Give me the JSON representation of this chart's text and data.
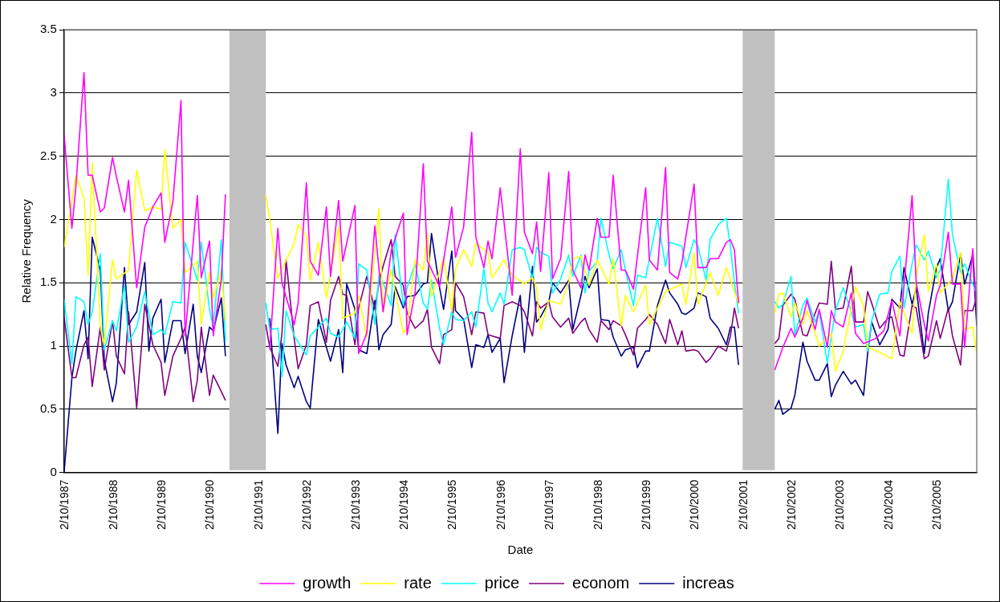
{
  "chart_data": {
    "type": "line",
    "xlabel": "Date",
    "ylabel": "Relative Frequency",
    "xlim": [
      "1987-02-01",
      "2005-12-01"
    ],
    "xticks": [
      {
        "value": "1987-02-10",
        "label": "2/10/1987"
      },
      {
        "value": "1988-02-10",
        "label": "2/10/1988"
      },
      {
        "value": "1989-02-10",
        "label": "2/10/1989"
      },
      {
        "value": "1990-02-10",
        "label": "2/10/1990"
      },
      {
        "value": "1991-02-10",
        "label": "2/10/1991"
      },
      {
        "value": "1992-02-10",
        "label": "2/10/1992"
      },
      {
        "value": "1993-02-10",
        "label": "2/10/1993"
      },
      {
        "value": "1994-02-10",
        "label": "2/10/1994"
      },
      {
        "value": "1995-02-10",
        "label": "2/10/1995"
      },
      {
        "value": "1996-02-10",
        "label": "2/10/1996"
      },
      {
        "value": "1997-02-10",
        "label": "2/10/1997"
      },
      {
        "value": "1998-02-10",
        "label": "2/10/1998"
      },
      {
        "value": "1999-02-10",
        "label": "2/10/1999"
      },
      {
        "value": "2000-02-10",
        "label": "2/10/2000"
      },
      {
        "value": "2001-02-10",
        "label": "2/10/2001"
      },
      {
        "value": "2002-02-10",
        "label": "2/10/2002"
      },
      {
        "value": "2003-02-10",
        "label": "2/10/2003"
      },
      {
        "value": "2004-02-10",
        "label": "2/10/2004"
      },
      {
        "value": "2005-02-10",
        "label": "2/10/2005"
      }
    ],
    "ylim": [
      0,
      3.5
    ],
    "yticks": [
      0,
      0.5,
      1,
      1.5,
      2,
      2.5,
      3,
      3.5
    ],
    "grid": "y",
    "legend": "bottom",
    "marker": "none",
    "bands": [
      {
        "axis": "x",
        "from": "1990-07-01",
        "to": "1991-04-01",
        "color": "#c0c0c0"
      },
      {
        "axis": "x",
        "from": "2001-02-01",
        "to": "2001-10-01",
        "color": "#c0c0c0"
      }
    ],
    "series": [
      {
        "name": "growth",
        "color": "#ff00ff",
        "x": [
          "1987-02",
          "1987-04",
          "1987-05",
          "1987-07",
          "1987-08",
          "1987-09",
          "1987-11",
          "1987-12",
          "1988-02",
          "1988-03",
          "1988-05",
          "1988-06",
          "1988-08",
          "1988-10",
          "1988-12",
          "1989-02",
          "1989-03",
          "1989-05",
          "1989-07",
          "1989-08",
          "1989-11",
          "1989-12",
          "1990-02",
          "1990-03",
          "1990-05",
          "1990-06",
          "1990-10",
          "1991-05",
          "1991-07",
          "1991-08",
          "1991-11",
          "1991-12",
          "1992-02",
          "1992-03",
          "1992-05",
          "1992-07",
          "1992-08",
          "1992-10",
          "1992-11",
          "1993-02",
          "1993-03",
          "1993-05",
          "1993-07",
          "1993-09",
          "1993-11",
          "1994-02",
          "1994-03",
          "1994-05",
          "1994-07",
          "1994-08",
          "1994-11",
          "1995-02",
          "1995-03",
          "1995-05",
          "1995-07",
          "1995-08",
          "1995-10",
          "1995-11",
          "1995-12",
          "1996-02",
          "1996-05",
          "1996-07",
          "1996-08",
          "1996-10",
          "1996-11",
          "1996-12",
          "1997-02",
          "1997-03",
          "1997-05",
          "1997-07",
          "1997-08",
          "1997-10",
          "1997-11",
          "1997-12",
          "1998-02",
          "1998-03",
          "1998-05",
          "1998-06",
          "1998-08",
          "1998-09",
          "1998-11",
          "1999-02",
          "1999-03",
          "1999-05",
          "1999-07",
          "1999-08",
          "1999-10",
          "1999-11",
          "2000-02",
          "2000-03",
          "2000-05",
          "2000-06",
          "2000-08",
          "2000-10",
          "2000-11",
          "2000-12",
          "2001-01",
          "2001-06",
          "2001-10",
          "2001-12",
          "2002-02",
          "2002-03",
          "2002-05",
          "2002-06",
          "2002-08",
          "2002-09",
          "2002-11",
          "2002-12",
          "2003-01",
          "2003-03",
          "2003-05",
          "2003-06",
          "2003-08",
          "2003-11",
          "2004-01",
          "2004-03",
          "2004-05",
          "2004-06",
          "2004-08",
          "2004-09",
          "2004-11",
          "2004-12",
          "2005-02",
          "2005-03",
          "2005-05",
          "2005-06",
          "2005-08",
          "2005-09",
          "2005-11",
          "2005-12"
        ],
        "values": [
          2.67,
          1.93,
          2.26,
          3.16,
          2.35,
          2.35,
          2.06,
          2.09,
          2.49,
          2.34,
          2.06,
          2.31,
          1.46,
          1.94,
          2.1,
          2.21,
          1.82,
          2.14,
          2.94,
          1.08,
          2.19,
          1.54,
          1.83,
          1.08,
          1.53,
          2.2,
          null,
          0.97,
          1.93,
          1.5,
          1.17,
          1.34,
          2.29,
          1.67,
          1.56,
          2.1,
          1.55,
          2.15,
          1.67,
          2.11,
          0.94,
          1.1,
          1.95,
          1.27,
          1.75,
          2.05,
          1.09,
          1.43,
          2.44,
          1.67,
          1.47,
          2.1,
          1.7,
          1.94,
          2.69,
          1.86,
          1.62,
          1.83,
          1.69,
          2.25,
          1.4,
          2.56,
          1.9,
          1.73,
          1.98,
          1.59,
          2.37,
          1.53,
          1.69,
          2.38,
          1.6,
          1.46,
          1.72,
          1.6,
          2.01,
          1.86,
          1.86,
          2.35,
          1.6,
          1.6,
          1.45,
          2.25,
          1.68,
          1.6,
          2.41,
          1.58,
          1.53,
          1.66,
          2.28,
          1.62,
          1.62,
          1.69,
          1.69,
          1.82,
          1.84,
          1.76,
          1.34,
          null,
          0.81,
          0.99,
          1.14,
          1.07,
          1.22,
          1.36,
          1.13,
          1.29,
          0.99,
          1.28,
          1.19,
          1.15,
          1.42,
          1.1,
          1.02,
          1.06,
          1.12,
          1.36,
          1.08,
          1.48,
          2.19,
          1.5,
          1.17,
          1.04,
          1.4,
          1.48,
          1.9,
          1.49,
          1.49,
          0.99,
          1.77,
          1.29
        ]
      },
      {
        "name": "rate",
        "color": "#ffff00",
        "x": [
          "1987-02",
          "1987-04",
          "1987-05",
          "1987-07",
          "1987-08",
          "1987-09",
          "1987-11",
          "1987-12",
          "1988-02",
          "1988-03",
          "1988-06",
          "1988-08",
          "1988-10",
          "1988-12",
          "1989-02",
          "1989-03",
          "1989-05",
          "1989-07",
          "1989-08",
          "1989-11",
          "1989-12",
          "1990-02",
          "1990-03",
          "1990-05",
          "1990-06",
          "1990-10",
          "1991-04",
          "1991-05",
          "1991-07",
          "1991-08",
          "1991-10",
          "1991-11",
          "1991-12",
          "1992-02",
          "1992-03",
          "1992-05",
          "1992-07",
          "1992-10",
          "1992-11",
          "1993-02",
          "1993-03",
          "1993-05",
          "1993-08",
          "1993-09",
          "1993-11",
          "1994-02",
          "1994-03",
          "1994-05",
          "1994-07",
          "1994-08",
          "1994-09",
          "1994-12",
          "1995-02",
          "1995-03",
          "1995-05",
          "1995-07",
          "1995-08",
          "1995-11",
          "1995-12",
          "1996-03",
          "1996-05",
          "1996-08",
          "1996-10",
          "1996-11",
          "1996-12",
          "1997-02",
          "1997-05",
          "1997-07",
          "1997-08",
          "1997-10",
          "1997-12",
          "1998-02",
          "1998-05",
          "1998-06",
          "1998-08",
          "1998-09",
          "1998-11",
          "1999-02",
          "1999-03",
          "1999-07",
          "1999-11",
          "1999-12",
          "2000-02",
          "2000-03",
          "2000-06",
          "2000-08",
          "2000-10",
          "2001-01",
          "2001-06",
          "2001-10",
          "2001-11",
          "2001-12",
          "2002-02",
          "2002-03",
          "2002-05",
          "2002-06",
          "2002-08",
          "2002-09",
          "2002-12",
          "2003-01",
          "2003-03",
          "2003-06",
          "2003-08",
          "2003-09",
          "2003-12",
          "2004-03",
          "2004-05",
          "2004-08",
          "2004-09",
          "2004-11",
          "2004-12",
          "2005-02",
          "2005-03",
          "2005-06",
          "2005-08",
          "2005-09",
          "2005-11",
          "2005-12"
        ],
        "values": [
          1.78,
          2.14,
          2.35,
          2.17,
          1.56,
          2.45,
          1.15,
          1.01,
          1.68,
          1.53,
          1.6,
          2.39,
          2.07,
          2.1,
          2.08,
          2.55,
          1.93,
          2.0,
          1.58,
          1.67,
          1.17,
          1.58,
          1.38,
          1.59,
          1.2,
          null,
          2.19,
          2.0,
          1.53,
          1.61,
          1.74,
          1.81,
          1.96,
          1.87,
          1.52,
          1.82,
          1.38,
          1.94,
          1.22,
          1.26,
          1.4,
          1.07,
          2.09,
          1.27,
          1.6,
          1.1,
          1.15,
          1.68,
          1.6,
          1.89,
          1.39,
          1.69,
          1.28,
          1.61,
          1.76,
          1.63,
          1.81,
          1.74,
          1.54,
          1.68,
          1.56,
          1.49,
          1.54,
          1.46,
          1.13,
          1.36,
          1.33,
          1.5,
          1.69,
          1.71,
          1.48,
          1.68,
          1.49,
          1.69,
          1.16,
          1.4,
          1.27,
          1.48,
          1.17,
          1.43,
          1.49,
          1.33,
          1.74,
          1.33,
          1.58,
          1.4,
          1.62,
          1.33,
          null,
          1.26,
          1.41,
          1.42,
          1.23,
          1.34,
          1.17,
          1.28,
          1.1,
          1.0,
          1.1,
          0.8,
          0.96,
          1.47,
          1.32,
          0.99,
          0.95,
          0.9,
          1.35,
          1.1,
          1.55,
          1.88,
          1.43,
          1.65,
          1.42,
          1.53,
          1.74,
          1.13,
          1.15,
          0.94
        ]
      },
      {
        "name": "price",
        "color": "#00ffff",
        "x": [
          "1987-02",
          "1987-04",
          "1987-05",
          "1987-07",
          "1987-08",
          "1987-09",
          "1987-11",
          "1987-12",
          "1988-02",
          "1988-03",
          "1988-05",
          "1988-06",
          "1988-08",
          "1988-10",
          "1988-12",
          "1989-02",
          "1989-03",
          "1989-05",
          "1989-07",
          "1989-08",
          "1989-11",
          "1989-12",
          "1990-02",
          "1990-03",
          "1990-05",
          "1990-06",
          "1990-10",
          "1991-04",
          "1991-05",
          "1991-07",
          "1991-08",
          "1991-09",
          "1991-11",
          "1992-02",
          "1992-03",
          "1992-07",
          "1992-08",
          "1992-10",
          "1992-12",
          "1993-02",
          "1993-03",
          "1993-05",
          "1993-07",
          "1993-08",
          "1993-09",
          "1993-11",
          "1993-12",
          "1994-02",
          "1994-03",
          "1994-05",
          "1994-07",
          "1994-08",
          "1994-09",
          "1994-11",
          "1994-12",
          "1995-02",
          "1995-03",
          "1995-05",
          "1995-07",
          "1995-08",
          "1995-10",
          "1995-11",
          "1995-12",
          "1996-02",
          "1996-03",
          "1996-05",
          "1996-07",
          "1996-08",
          "1996-10",
          "1996-11",
          "1996-12",
          "1997-02",
          "1997-03",
          "1997-05",
          "1997-07",
          "1997-08",
          "1997-10",
          "1997-11",
          "1997-12",
          "1998-02",
          "1998-03",
          "1998-05",
          "1998-06",
          "1998-08",
          "1998-09",
          "1998-11",
          "1998-12",
          "1999-02",
          "1999-03",
          "1999-05",
          "1999-07",
          "1999-08",
          "1999-10",
          "1999-11",
          "1999-12",
          "2000-02",
          "2000-03",
          "2000-05",
          "2000-06",
          "2000-08",
          "2000-10",
          "2000-11",
          "2000-12",
          "2001-01",
          "2001-06",
          "2001-10",
          "2001-11",
          "2001-12",
          "2002-02",
          "2002-03",
          "2002-05",
          "2002-06",
          "2002-08",
          "2002-09",
          "2002-11",
          "2002-12",
          "2003-01",
          "2003-03",
          "2003-05",
          "2003-06",
          "2003-08",
          "2003-09",
          "2003-10",
          "2003-12",
          "2004-02",
          "2004-03",
          "2004-05",
          "2004-06",
          "2004-08",
          "2004-09",
          "2004-11",
          "2004-12",
          "2005-02",
          "2005-03",
          "2005-05",
          "2005-06",
          "2005-08",
          "2005-09",
          "2005-11",
          "2005-12"
        ],
        "values": [
          1.37,
          0.86,
          1.39,
          1.35,
          1.17,
          1.27,
          1.73,
          0.97,
          1.2,
          1.12,
          1.48,
          1.03,
          1.15,
          1.43,
          1.09,
          1.13,
          1.09,
          1.35,
          1.34,
          1.82,
          1.52,
          1.82,
          1.29,
          1.15,
          1.84,
          1.03,
          null,
          1.34,
          1.13,
          1.14,
          0.76,
          1.28,
          1.08,
          0.93,
          1.08,
          1.22,
          1.1,
          1.07,
          1.19,
          1.06,
          1.65,
          1.6,
          1.17,
          1.56,
          1.5,
          1.32,
          1.88,
          1.32,
          1.46,
          1.65,
          1.34,
          1.29,
          1.52,
          1.14,
          1.01,
          1.27,
          1.21,
          1.2,
          1.27,
          1.15,
          1.61,
          1.34,
          1.27,
          1.42,
          1.33,
          1.76,
          1.78,
          1.76,
          1.53,
          1.78,
          1.74,
          1.71,
          1.42,
          1.53,
          1.72,
          1.55,
          1.72,
          1.42,
          1.59,
          1.67,
          2.01,
          1.72,
          1.61,
          1.76,
          1.6,
          1.32,
          1.56,
          1.54,
          1.69,
          2.01,
          1.63,
          1.82,
          1.8,
          1.79,
          1.62,
          1.84,
          1.79,
          1.52,
          1.84,
          1.96,
          2.01,
          1.78,
          1.5,
          1.26,
          null,
          1.35,
          1.3,
          1.33,
          1.55,
          1.09,
          1.32,
          1.38,
          1.19,
          1.27,
          0.87,
          1.08,
          1.28,
          1.46,
          1.27,
          1.15,
          1.17,
          0.96,
          1.2,
          1.41,
          1.42,
          1.59,
          1.71,
          1.3,
          1.65,
          1.8,
          1.68,
          1.75,
          1.54,
          1.6,
          2.32,
          1.88,
          1.58,
          1.65,
          1.49,
          1.41
        ]
      },
      {
        "name": "econom",
        "color": "#800080",
        "x": [
          "1987-02",
          "1987-04",
          "1987-05",
          "1987-07",
          "1987-08",
          "1987-09",
          "1987-11",
          "1987-12",
          "1988-02",
          "1988-03",
          "1988-05",
          "1988-06",
          "1988-08",
          "1988-10",
          "1988-12",
          "1989-02",
          "1989-03",
          "1989-05",
          "1989-07",
          "1989-08",
          "1989-10",
          "1989-11",
          "1989-12",
          "1990-02",
          "1990-03",
          "1990-05",
          "1990-06",
          "1990-10",
          "1991-04",
          "1991-05",
          "1991-07",
          "1991-08",
          "1991-09",
          "1991-11",
          "1991-12",
          "1992-02",
          "1992-03",
          "1992-05",
          "1992-07",
          "1992-08",
          "1992-10",
          "1992-11",
          "1992-12",
          "1993-02",
          "1993-03",
          "1993-05",
          "1993-07",
          "1993-08",
          "1993-09",
          "1993-11",
          "1993-12",
          "1994-02",
          "1994-03",
          "1994-05",
          "1994-07",
          "1994-08",
          "1994-09",
          "1994-11",
          "1994-12",
          "1995-02",
          "1995-03",
          "1995-05",
          "1995-07",
          "1995-08",
          "1995-10",
          "1995-11",
          "1995-12",
          "1996-02",
          "1996-03",
          "1996-05",
          "1996-07",
          "1996-08",
          "1996-10",
          "1996-11",
          "1996-12",
          "1997-02",
          "1997-03",
          "1997-05",
          "1997-07",
          "1997-08",
          "1997-10",
          "1997-11",
          "1997-12",
          "1998-02",
          "1998-03",
          "1998-05",
          "1998-06",
          "1998-08",
          "1998-09",
          "1998-11",
          "1998-12",
          "1999-02",
          "1999-03",
          "1999-05",
          "1999-07",
          "1999-08",
          "1999-10",
          "1999-11",
          "1999-12",
          "2000-02",
          "2000-03",
          "2000-05",
          "2000-06",
          "2000-08",
          "2000-10",
          "2000-11",
          "2000-12",
          "2001-01",
          "2001-06",
          "2001-10",
          "2001-11",
          "2001-12",
          "2002-02",
          "2002-03",
          "2002-05",
          "2002-06",
          "2002-08",
          "2002-09",
          "2002-11",
          "2002-12",
          "2003-01",
          "2003-03",
          "2003-05",
          "2003-06",
          "2003-08",
          "2003-09",
          "2003-10",
          "2003-12",
          "2004-02",
          "2004-03",
          "2004-05",
          "2004-06",
          "2004-08",
          "2004-09",
          "2004-11",
          "2004-12",
          "2005-02",
          "2005-03",
          "2005-05",
          "2005-06",
          "2005-08",
          "2005-09",
          "2005-11",
          "2005-12"
        ],
        "values": [
          1.23,
          0.75,
          0.75,
          1.01,
          1.07,
          0.68,
          1.15,
          0.81,
          1.2,
          0.92,
          0.78,
          1.27,
          0.51,
          1.33,
          1.01,
          0.87,
          0.61,
          0.92,
          1.06,
          1.15,
          0.56,
          0.73,
          1.15,
          0.61,
          0.77,
          0.64,
          0.57,
          null,
          1.17,
          0.99,
          0.84,
          1.1,
          1.68,
          1.06,
          0.82,
          1.01,
          1.32,
          1.35,
          1.03,
          1.36,
          1.55,
          1.41,
          1.4,
          1.01,
          1.3,
          1.55,
          1.29,
          1.5,
          1.63,
          1.84,
          1.55,
          1.48,
          1.26,
          1.14,
          1.2,
          1.29,
          0.99,
          0.86,
          1.09,
          1.13,
          1.5,
          1.39,
          1.09,
          1.27,
          1.26,
          1.09,
          1.08,
          1.06,
          1.32,
          1.35,
          1.32,
          1.27,
          1.08,
          1.35,
          1.3,
          1.35,
          1.23,
          1.15,
          1.22,
          1.1,
          1.19,
          1.22,
          1.13,
          1.03,
          1.2,
          1.13,
          1.2,
          1.16,
          1.09,
          0.93,
          1.14,
          1.21,
          1.25,
          1.17,
          1.02,
          1.21,
          1.01,
          1.12,
          0.96,
          0.97,
          0.96,
          0.87,
          0.9,
          1.0,
          0.96,
          1.08,
          1.3,
          1.14,
          null,
          1.02,
          1.06,
          1.32,
          1.41,
          1.37,
          1.09,
          1.08,
          1.26,
          1.34,
          1.33,
          1.67,
          1.29,
          1.3,
          1.63,
          1.19,
          1.19,
          1.43,
          1.34,
          1.14,
          1.22,
          1.23,
          0.93,
          0.92,
          1.32,
          1.3,
          0.9,
          0.92,
          1.2,
          1.06,
          1.3,
          1.08,
          0.85,
          1.28,
          1.28,
          1.39
        ]
      },
      {
        "name": "increas",
        "color": "#000080",
        "x": [
          "1987-02",
          "1987-04",
          "1987-05",
          "1987-07",
          "1987-08",
          "1987-09",
          "1987-11",
          "1987-12",
          "1988-02",
          "1988-03",
          "1988-05",
          "1988-06",
          "1988-08",
          "1988-10",
          "1988-11",
          "1988-12",
          "1989-02",
          "1989-03",
          "1989-05",
          "1989-07",
          "1989-08",
          "1989-10",
          "1989-11",
          "1989-12",
          "1990-02",
          "1990-03",
          "1990-05",
          "1990-06",
          "1990-10",
          "1991-05",
          "1991-07",
          "1991-08",
          "1991-09",
          "1991-11",
          "1991-12",
          "1992-02",
          "1992-03",
          "1992-05",
          "1992-07",
          "1992-08",
          "1992-10",
          "1992-11",
          "1992-12",
          "1993-02",
          "1993-03",
          "1993-05",
          "1993-07",
          "1993-08",
          "1993-09",
          "1993-11",
          "1993-12",
          "1994-02",
          "1994-03",
          "1994-05",
          "1994-07",
          "1994-08",
          "1994-09",
          "1994-11",
          "1994-12",
          "1995-02",
          "1995-03",
          "1995-05",
          "1995-07",
          "1995-08",
          "1995-10",
          "1995-11",
          "1995-12",
          "1996-02",
          "1996-03",
          "1996-05",
          "1996-07",
          "1996-08",
          "1996-10",
          "1996-11",
          "1996-12",
          "1997-02",
          "1997-03",
          "1997-05",
          "1997-07",
          "1997-08",
          "1997-10",
          "1997-11",
          "1997-12",
          "1998-02",
          "1998-03",
          "1998-05",
          "1998-06",
          "1998-08",
          "1998-09",
          "1998-11",
          "1998-12",
          "1999-02",
          "1999-03",
          "1999-05",
          "1999-07",
          "1999-08",
          "1999-10",
          "1999-11",
          "1999-12",
          "2000-02",
          "2000-03",
          "2000-05",
          "2000-06",
          "2000-08",
          "2000-10",
          "2000-11",
          "2000-12",
          "2001-01",
          "2001-06",
          "2001-10",
          "2001-11",
          "2001-12",
          "2002-02",
          "2002-03",
          "2002-05",
          "2002-06",
          "2002-08",
          "2002-09",
          "2002-11",
          "2002-12",
          "2003-01",
          "2003-03",
          "2003-05",
          "2003-06",
          "2003-08",
          "2003-09",
          "2003-10",
          "2003-12",
          "2004-02",
          "2004-03",
          "2004-05",
          "2004-06",
          "2004-08",
          "2004-09",
          "2004-11",
          "2004-12",
          "2005-02",
          "2005-03",
          "2005-05",
          "2005-06",
          "2005-08",
          "2005-09",
          "2005-11",
          "2005-12"
        ],
        "values": [
          0,
          0.75,
          0.96,
          1.28,
          0.9,
          1.86,
          1.6,
          0.89,
          0.56,
          0.71,
          1.62,
          1.17,
          1.27,
          1.66,
          0.96,
          1.22,
          1.37,
          0.87,
          1.2,
          1.2,
          0.94,
          1.33,
          0.92,
          0.79,
          1.15,
          1.12,
          1.38,
          0.92,
          null,
          1.22,
          0.31,
          1.02,
          0.85,
          0.67,
          0.76,
          0.56,
          0.51,
          1.21,
          0.99,
          0.88,
          1.13,
          0.79,
          1.49,
          1.29,
          0.97,
          0.94,
          1.36,
          0.97,
          1.09,
          1.17,
          1.47,
          1.3,
          1.39,
          1.4,
          1.49,
          1.5,
          1.89,
          1.46,
          1.29,
          1.75,
          1.28,
          1.21,
          0.83,
          1.01,
          0.99,
          1.09,
          0.95,
          1.06,
          0.71,
          1.08,
          1.4,
          0.95,
          1.63,
          1.19,
          1.23,
          1.35,
          1.5,
          1.42,
          1.52,
          1.13,
          1.4,
          1.55,
          1.46,
          1.61,
          1.21,
          1.2,
          1.07,
          0.92,
          0.97,
          0.99,
          0.83,
          0.96,
          0.96,
          1.32,
          1.52,
          1.42,
          1.33,
          1.26,
          1.25,
          1.3,
          1.42,
          1.39,
          1.22,
          1.14,
          1.01,
          1.15,
          1.15,
          0.85,
          null,
          0.5,
          0.57,
          0.46,
          0.51,
          0.61,
          1.03,
          0.88,
          0.73,
          0.73,
          0.86,
          0.6,
          0.69,
          0.8,
          0.7,
          0.73,
          0.61,
          0.94,
          1.19,
          1.01,
          1.13,
          1.37,
          1.3,
          1.62,
          1.33,
          1.46,
          0.94,
          1.26,
          1.62,
          1.69,
          1.28,
          1.35,
          1.73,
          1.49,
          1.72,
          1.16
        ]
      }
    ]
  }
}
